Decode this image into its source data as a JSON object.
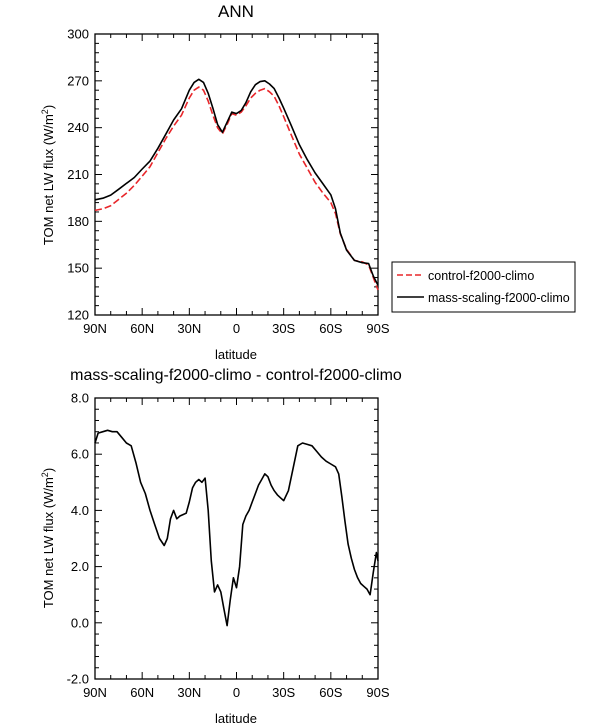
{
  "chart_data": [
    {
      "type": "line",
      "title": "ANN",
      "xlabel": "latitude",
      "ylabel": "TOM net LW flux (W/m",
      "ylabel_sup": "2",
      "ylabel_close": ")",
      "xlim": [
        90,
        -90
      ],
      "ylim": [
        120,
        300
      ],
      "xticks": [
        {
          "value": 90,
          "label": "90N"
        },
        {
          "value": 60,
          "label": "60N"
        },
        {
          "value": 30,
          "label": "30N"
        },
        {
          "value": 0,
          "label": "0"
        },
        {
          "value": -30,
          "label": "30S"
        },
        {
          "value": -60,
          "label": "60S"
        },
        {
          "value": -90,
          "label": "90S"
        }
      ],
      "yticks": [
        120,
        150,
        180,
        210,
        240,
        270,
        300
      ],
      "legend_position": "right",
      "series": [
        {
          "name": "control-f2000-climo",
          "color": "#e8262a",
          "dash": "dashed",
          "x": [
            90,
            85,
            80,
            75,
            70,
            65,
            60,
            55,
            50,
            45,
            40,
            35,
            30,
            27,
            24,
            21,
            18,
            15,
            12,
            9,
            6,
            3,
            0,
            -3,
            -6,
            -9,
            -12,
            -15,
            -18,
            -21,
            -24,
            -27,
            -30,
            -35,
            -40,
            -45,
            -50,
            -55,
            -60,
            -63,
            -66,
            -70,
            -75,
            -80,
            -84,
            -87,
            -90
          ],
          "y": [
            187,
            188,
            190,
            194,
            198,
            203,
            209,
            215,
            224,
            233,
            241,
            248,
            259,
            264,
            266,
            264,
            257,
            248,
            240,
            236,
            242,
            249,
            248,
            250,
            254,
            259,
            262,
            264,
            265,
            263,
            260,
            254,
            247,
            235,
            223,
            214,
            205,
            198,
            192,
            185,
            172,
            162,
            155,
            154,
            152,
            144,
            136
          ]
        },
        {
          "name": "mass-scaling-f2000-climo",
          "color": "#000000",
          "dash": "solid",
          "x": [
            90,
            85,
            80,
            75,
            70,
            65,
            60,
            55,
            50,
            45,
            40,
            35,
            30,
            27,
            24,
            21,
            18,
            15,
            12,
            9,
            6,
            3,
            0,
            -3,
            -6,
            -9,
            -12,
            -15,
            -18,
            -21,
            -24,
            -27,
            -30,
            -35,
            -40,
            -45,
            -50,
            -55,
            -60,
            -63,
            -66,
            -70,
            -75,
            -80,
            -84,
            -87,
            -90
          ],
          "y": [
            193.8,
            194.8,
            196.8,
            200.5,
            204.3,
            208.1,
            213.5,
            218.6,
            226.8,
            235.8,
            244.9,
            252.1,
            264,
            269,
            271,
            269,
            262,
            252.5,
            242,
            237,
            243.5,
            250,
            249,
            251,
            256,
            263,
            267.5,
            269.5,
            270,
            268,
            265,
            259,
            252.5,
            241,
            229,
            219.5,
            211,
            204,
            197,
            188,
            172.5,
            161.5,
            155,
            153.5,
            153,
            145,
            139
          ]
        }
      ]
    },
    {
      "type": "line",
      "title": "mass-scaling-f2000-climo - control-f2000-climo",
      "xlabel": "latitude",
      "ylabel": "TOM net LW flux (W/m",
      "ylabel_sup": "2",
      "ylabel_close": ")",
      "xlim": [
        90,
        -90
      ],
      "ylim": [
        -2,
        8
      ],
      "xticks": [
        {
          "value": 90,
          "label": "90N"
        },
        {
          "value": 60,
          "label": "60N"
        },
        {
          "value": 30,
          "label": "30N"
        },
        {
          "value": 0,
          "label": "0"
        },
        {
          "value": -30,
          "label": "30S"
        },
        {
          "value": -60,
          "label": "60S"
        },
        {
          "value": -90,
          "label": "90S"
        }
      ],
      "yticks": [
        {
          "value": -2,
          "label": "-2.0"
        },
        {
          "value": 0,
          "label": "0.0"
        },
        {
          "value": 2,
          "label": "2.0"
        },
        {
          "value": 4,
          "label": "4.0"
        },
        {
          "value": 6,
          "label": "6.0"
        },
        {
          "value": 8,
          "label": "8.0"
        }
      ],
      "series": [
        {
          "color": "#000000",
          "x": [
            90,
            88,
            85,
            82,
            79,
            76,
            73,
            70,
            67,
            64,
            61,
            58,
            55,
            52,
            49,
            46,
            44,
            42,
            40,
            38,
            36,
            34,
            32,
            30,
            28,
            26,
            24,
            22,
            20,
            18,
            16,
            14,
            12,
            10,
            8,
            6,
            4,
            2,
            0,
            -2,
            -4,
            -6,
            -8,
            -10,
            -12,
            -14,
            -16,
            -18,
            -20,
            -22,
            -24,
            -26,
            -28,
            -30,
            -33,
            -36,
            -39,
            -42,
            -45,
            -48,
            -51,
            -54,
            -57,
            -60,
            -63,
            -65,
            -67,
            -69,
            -71,
            -73,
            -75,
            -77,
            -79,
            -81,
            -83,
            -85,
            -87,
            -89,
            -90
          ],
          "y": [
            6.4,
            6.75,
            6.8,
            6.85,
            6.8,
            6.8,
            6.6,
            6.4,
            6.3,
            5.7,
            5.0,
            4.6,
            4.0,
            3.5,
            3.0,
            2.75,
            3.0,
            3.7,
            4.0,
            3.7,
            3.8,
            3.85,
            3.9,
            4.3,
            4.8,
            5.0,
            5.1,
            5.0,
            5.15,
            4.0,
            2.2,
            1.1,
            1.35,
            1.1,
            0.5,
            -0.1,
            0.8,
            1.6,
            1.25,
            2.0,
            3.5,
            3.8,
            4.0,
            4.3,
            4.6,
            4.9,
            5.1,
            5.3,
            5.2,
            4.9,
            4.7,
            4.55,
            4.45,
            4.35,
            4.7,
            5.5,
            6.3,
            6.4,
            6.35,
            6.3,
            6.1,
            5.9,
            5.75,
            5.65,
            5.55,
            5.3,
            4.5,
            3.6,
            2.8,
            2.3,
            1.9,
            1.6,
            1.4,
            1.3,
            1.2,
            1.0,
            1.8,
            2.5,
            2.2
          ]
        }
      ]
    }
  ],
  "legend": {
    "entries": [
      "control-f2000-climo",
      "mass-scaling-f2000-climo"
    ]
  }
}
